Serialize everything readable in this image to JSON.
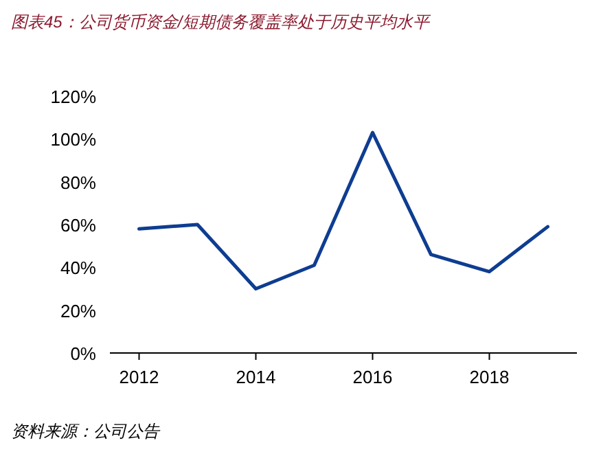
{
  "chart_data": {
    "type": "line",
    "title": "图表45：公司货币资金/短期债务覆盖率处于历史平均水平",
    "x": [
      2012,
      2013,
      2014,
      2015,
      2016,
      2017,
      2018,
      2019
    ],
    "series": [
      {
        "color": "#0e3d91",
        "values": [
          58,
          60,
          30,
          41,
          103,
          46,
          38,
          59
        ]
      }
    ],
    "xlim": [
      2011.5,
      2019.5
    ],
    "xticks": [
      2012,
      2014,
      2016,
      2018
    ],
    "ylim": [
      0,
      120
    ],
    "yticks": [
      {
        "value": 0,
        "label": "0%"
      },
      {
        "value": 20,
        "label": "20%"
      },
      {
        "value": 40,
        "label": "40%"
      },
      {
        "value": 60,
        "label": "60%"
      },
      {
        "value": 80,
        "label": "80%"
      },
      {
        "value": 100,
        "label": "100%"
      },
      {
        "value": 120,
        "label": "120%"
      }
    ],
    "annotations": [
      "资料来源：公司公告"
    ],
    "grid": false,
    "marker": "none",
    "line_style": "solid"
  }
}
